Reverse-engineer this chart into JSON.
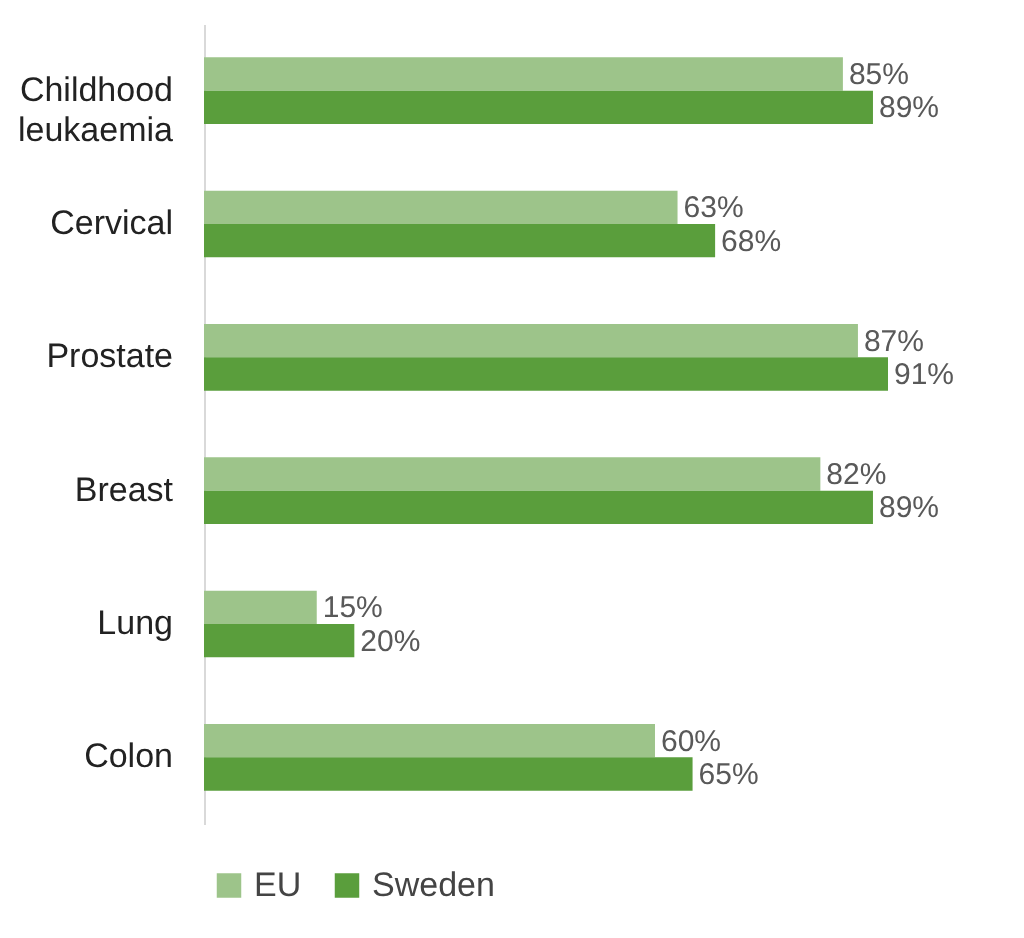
{
  "chart_data": {
    "type": "bar",
    "orientation": "horizontal",
    "categories": [
      "Childhood leukaemia",
      "Cervical",
      "Prostate",
      "Breast",
      "Lung",
      "Colon"
    ],
    "series": [
      {
        "name": "EU",
        "color": "#9dc48a",
        "values": [
          85,
          63,
          87,
          82,
          15,
          60
        ],
        "value_labels": [
          "85%",
          "63%",
          "87%",
          "82%",
          "15%",
          "60%"
        ]
      },
      {
        "name": "Sweden",
        "color": "#5a9e3c",
        "values": [
          89,
          68,
          91,
          89,
          20,
          65
        ],
        "value_labels": [
          "89%",
          "68%",
          "91%",
          "89%",
          "20%",
          "65%"
        ]
      }
    ],
    "legend": "bottom"
  }
}
